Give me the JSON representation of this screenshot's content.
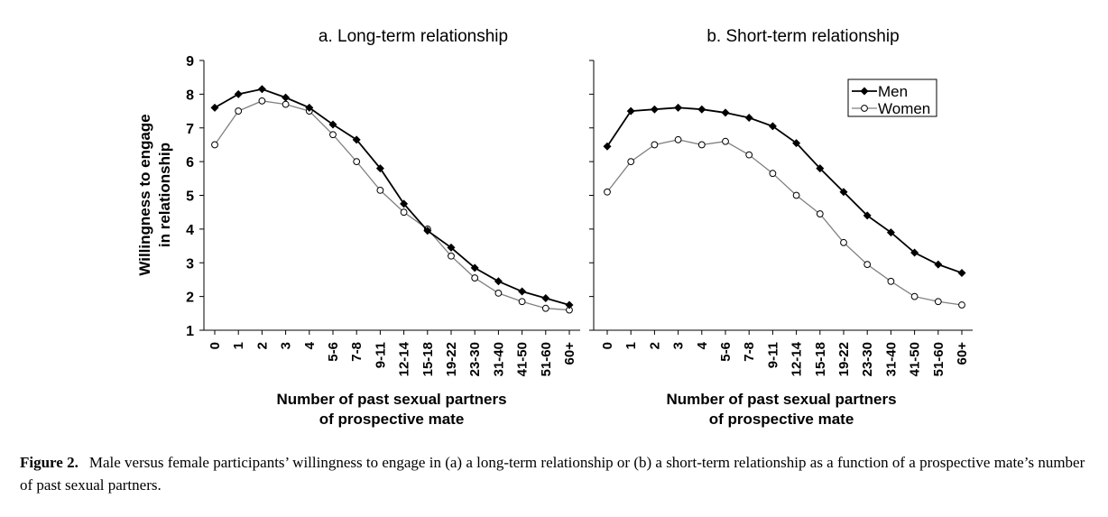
{
  "chart_data": [
    {
      "type": "line",
      "title": "a. Long-term relationship",
      "xlabel": "Number of past sexual partners\nof prospective mate",
      "ylabel": "Willingness to engage\nin relationship",
      "ylim": [
        1,
        9
      ],
      "yticks": [
        1,
        2,
        3,
        4,
        5,
        6,
        7,
        8,
        9
      ],
      "categories": [
        "0",
        "1",
        "2",
        "3",
        "4",
        "5-6",
        "7-8",
        "9-11",
        "12-14",
        "15-18",
        "19-22",
        "23-30",
        "31-40",
        "41-50",
        "51-60",
        "60+"
      ],
      "grid": false,
      "legend": "none",
      "series": [
        {
          "name": "Men",
          "marker": "filled-diamond",
          "values": [
            7.6,
            8.0,
            8.15,
            7.9,
            7.6,
            7.1,
            6.65,
            5.8,
            4.75,
            3.95,
            3.45,
            2.85,
            2.45,
            2.15,
            1.95,
            1.75
          ]
        },
        {
          "name": "Women",
          "marker": "open-circle",
          "values": [
            6.5,
            7.5,
            7.8,
            7.7,
            7.5,
            6.8,
            6.0,
            5.15,
            4.5,
            4.0,
            3.2,
            2.55,
            2.1,
            1.85,
            1.65,
            1.6
          ]
        }
      ]
    },
    {
      "type": "line",
      "title": "b. Short-term relationship",
      "xlabel": "Number of past sexual partners\nof prospective mate",
      "ylabel": "",
      "ylim": [
        1,
        9
      ],
      "categories": [
        "0",
        "1",
        "2",
        "3",
        "4",
        "5-6",
        "7-8",
        "9-11",
        "12-14",
        "15-18",
        "19-22",
        "23-30",
        "31-40",
        "41-50",
        "51-60",
        "60+"
      ],
      "grid": false,
      "legend": "top-right",
      "series": [
        {
          "name": "Men",
          "marker": "filled-diamond",
          "values": [
            6.45,
            7.5,
            7.55,
            7.6,
            7.55,
            7.45,
            7.3,
            7.05,
            6.55,
            5.8,
            5.1,
            4.4,
            3.9,
            3.3,
            2.95,
            2.7
          ]
        },
        {
          "name": "Women",
          "marker": "open-circle",
          "values": [
            5.1,
            6.0,
            6.5,
            6.65,
            6.5,
            6.6,
            6.2,
            5.65,
            5.0,
            4.45,
            3.6,
            2.95,
            2.45,
            2.0,
            1.85,
            1.75
          ]
        }
      ]
    }
  ],
  "caption": {
    "label": "Figure 2.",
    "text": "Male versus female participants’ willingness to engage in (a) a long-term relationship or (b) a short-term relationship as a function of a prospective mate’s number of past sexual partners."
  },
  "colors": {
    "men": "#000000",
    "women": "#808080",
    "women_fill": "#ffffff"
  }
}
